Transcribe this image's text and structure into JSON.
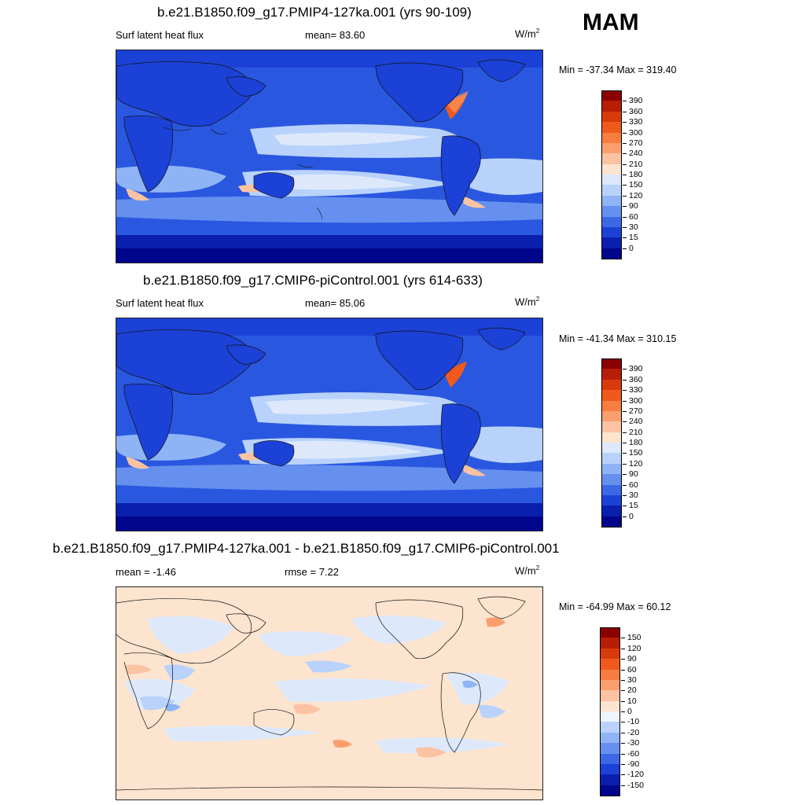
{
  "season": "MAM",
  "panels": [
    {
      "title": "b.e21.B1850.f09_g17.PMIP4-127ka.001 (yrs 90-109)",
      "left_label": "Surf latent heat flux",
      "mid_label": "mean=  83.60",
      "unit_base": "W/m",
      "unit_sup": "2",
      "minmax": "Min = -37.34 Max = 319.40",
      "background": "#2a57e0"
    },
    {
      "title": "b.e21.B1850.f09_g17.CMIP6-piControl.001 (yrs 614-633)",
      "left_label": "Surf latent heat flux",
      "mid_label": "mean=  85.06",
      "unit_base": "W/m",
      "unit_sup": "2",
      "minmax": "Min = -41.34 Max = 310.15",
      "background": "#2a57e0"
    },
    {
      "title": "b.e21.B1850.f09_g17.PMIP4-127ka.001 - b.e21.B1850.f09_g17.CMIP6-piControl.001",
      "left_label": "mean =  -1.46",
      "mid_label": "rmse =   7.22",
      "unit_base": "W/m",
      "unit_sup": "2",
      "minmax": "Min = -64.99 Max =  60.12",
      "background": "#fde4cf"
    }
  ],
  "colorbars": {
    "absolute": {
      "labels": [
        "390",
        "360",
        "330",
        "300",
        "270",
        "240",
        "210",
        "180",
        "150",
        "120",
        "90",
        "60",
        "30",
        "15",
        "0"
      ],
      "colors": [
        "#8b0000",
        "#b81d06",
        "#d93a0c",
        "#ef5a1c",
        "#f77d40",
        "#fb9e6e",
        "#fcc3a2",
        "#fde4cf",
        "#dde9fb",
        "#b8d2fb",
        "#8fb4f5",
        "#6690ef",
        "#3c68e6",
        "#1c41d6",
        "#0a1fae",
        "#00068c"
      ]
    },
    "difference": {
      "labels": [
        "150",
        "120",
        "90",
        "60",
        "30",
        "20",
        "10",
        "0",
        "-10",
        "-20",
        "-30",
        "-60",
        "-90",
        "-120",
        "-150"
      ],
      "colors": [
        "#8b0000",
        "#b81d06",
        "#d93a0c",
        "#ef5a1c",
        "#f77d40",
        "#fb9e6e",
        "#fcc3a2",
        "#fde4cf",
        "#eef3fd",
        "#b8d2fb",
        "#8fb4f5",
        "#6690ef",
        "#3c68e6",
        "#1c41d6",
        "#0a1fae",
        "#00068c"
      ]
    }
  }
}
